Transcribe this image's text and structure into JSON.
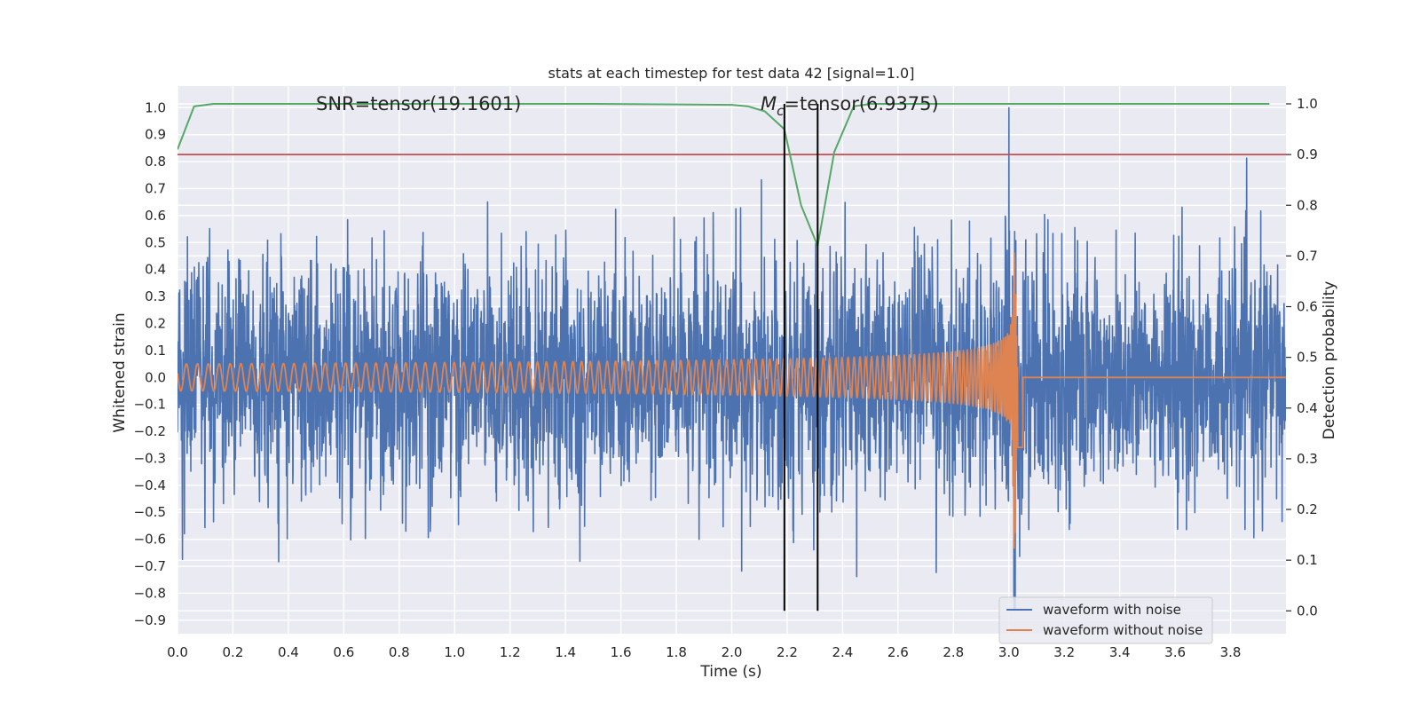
{
  "chart_data": {
    "type": "line",
    "title": "stats at each timestep for test data 42 [signal=1.0]",
    "xlabel": "Time (s)",
    "ylabel_left": "Whitened strain",
    "ylabel_right": "Detection probability",
    "xlim": [
      0.0,
      4.0
    ],
    "ylim_left": [
      -0.95,
      1.08
    ],
    "ylim_right": [
      -0.045,
      1.035
    ],
    "x_ticks": [
      "0.0",
      "0.2",
      "0.4",
      "0.6",
      "0.8",
      "1.0",
      "1.2",
      "1.4",
      "1.6",
      "1.8",
      "2.0",
      "2.2",
      "2.4",
      "2.6",
      "2.8",
      "3.0",
      "3.2",
      "3.4",
      "3.6",
      "3.8"
    ],
    "y_left_ticks": [
      "-0.9",
      "-0.8",
      "-0.7",
      "-0.6",
      "-0.5",
      "-0.4",
      "-0.3",
      "-0.2",
      "-0.1",
      "0.0",
      "0.1",
      "0.2",
      "0.3",
      "0.4",
      "0.5",
      "0.6",
      "0.7",
      "0.8",
      "0.9",
      "1.0"
    ],
    "y_right_ticks": [
      "0.0",
      "0.1",
      "0.2",
      "0.3",
      "0.4",
      "0.5",
      "0.6",
      "0.7",
      "0.8",
      "0.9",
      "1.0"
    ],
    "annotations": {
      "snr_text": "SNR=tensor(19.1601)",
      "mc_prefix": "M",
      "mc_sub": "c",
      "mc_suffix": "=tensor(6.9375)"
    },
    "vertical_lines_x": [
      2.19,
      2.31
    ],
    "threshold_line": {
      "axis": "right",
      "y": 0.9,
      "color": "#c44e52"
    },
    "series": [
      {
        "name": "waveform with noise",
        "axis": "left",
        "color": "#4c72b0",
        "kind": "noise",
        "amplitude_std": 0.25,
        "peak_t": 3.0,
        "peak_y": 1.0,
        "min_y": -0.87
      },
      {
        "name": "waveform without noise",
        "axis": "left",
        "color": "#dd8452",
        "kind": "chirp",
        "start_amplitude": 0.05,
        "merger_t": 3.02,
        "merger_peak": 0.46,
        "merger_trough": -0.69,
        "start_frequency_hz": 25
      },
      {
        "name": "detection probability",
        "axis": "right",
        "color": "#55a868",
        "kind": "line",
        "x": [
          0.0,
          0.06,
          0.13,
          0.25,
          0.5,
          1.0,
          1.5,
          2.0,
          2.06,
          2.12,
          2.19,
          2.25,
          2.31,
          2.37,
          2.44,
          2.5,
          3.0,
          3.5,
          3.94
        ],
        "y": [
          0.91,
          0.995,
          1.0,
          1.0,
          1.0,
          1.0,
          1.0,
          0.998,
          0.995,
          0.985,
          0.95,
          0.8,
          0.72,
          0.905,
          0.995,
          1.0,
          1.0,
          1.0,
          1.0
        ]
      }
    ],
    "legend": {
      "location": "lower-right",
      "entries": [
        "waveform with noise",
        "waveform without noise"
      ]
    }
  }
}
